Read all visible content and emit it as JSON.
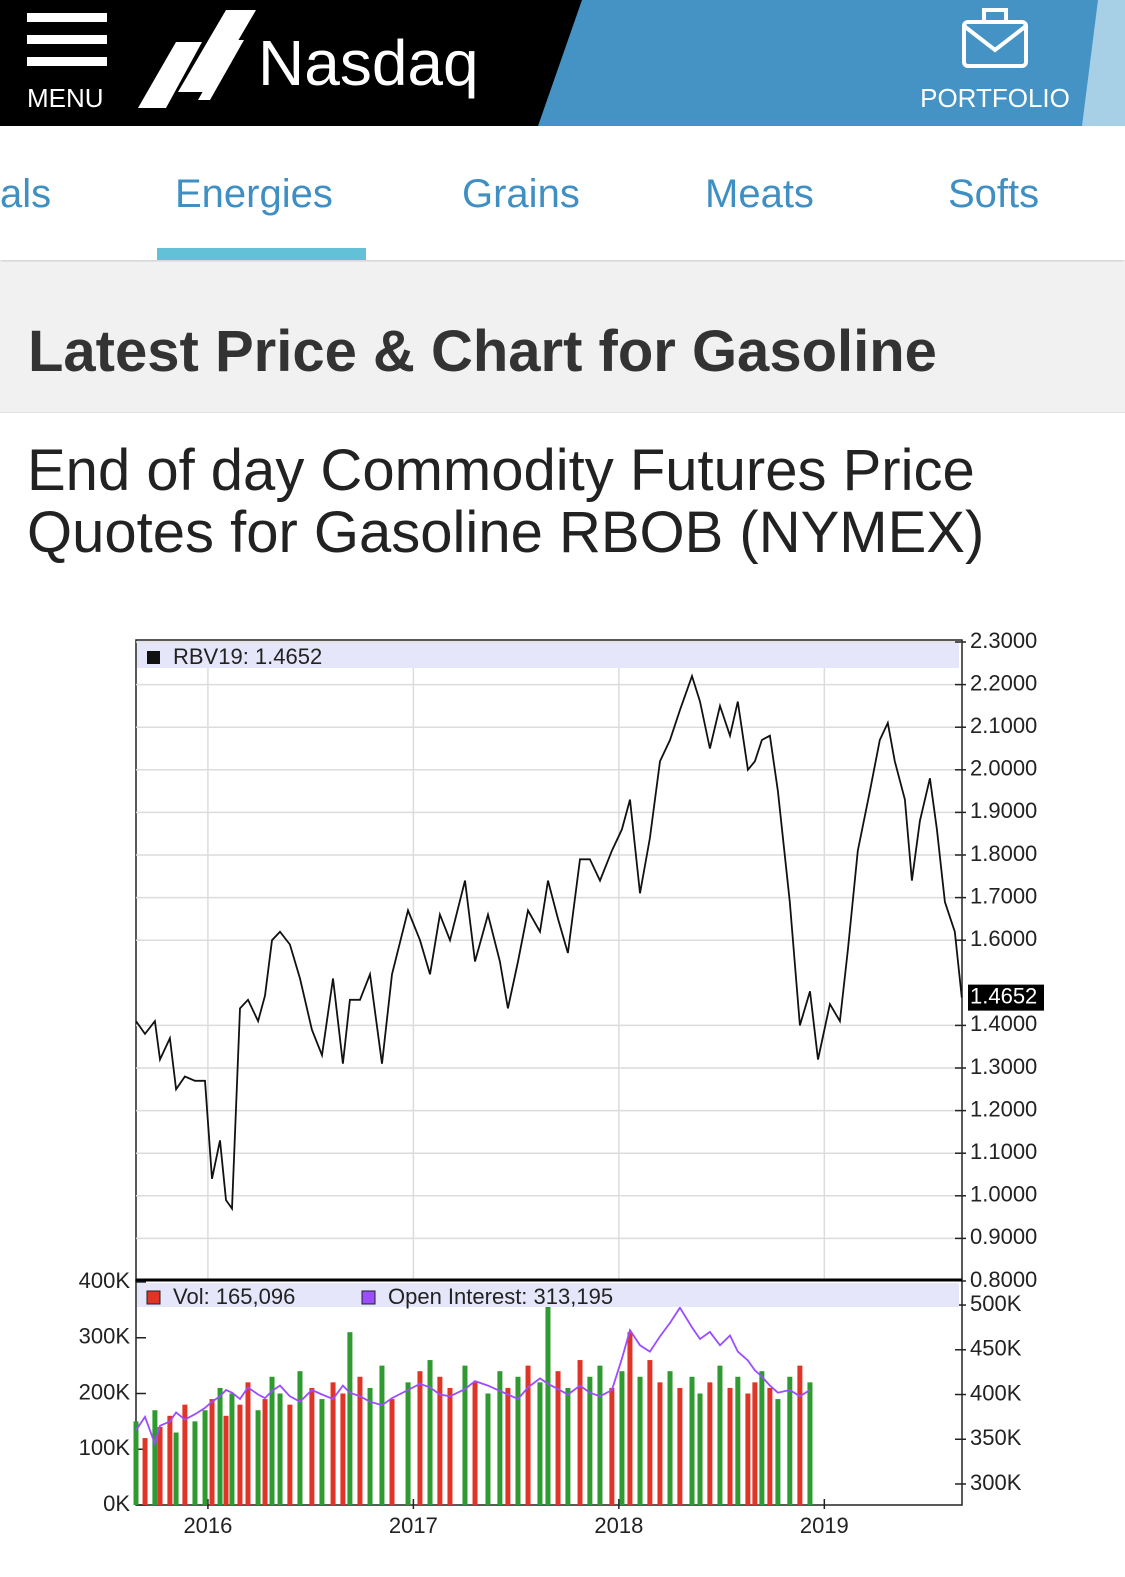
{
  "header": {
    "menu": "MENU",
    "logo": "Nasdaq",
    "portfolio": "PORTFOLIO"
  },
  "tabs": {
    "items": [
      "als",
      "Energies",
      "Grains",
      "Meats",
      "Softs"
    ],
    "active": 1
  },
  "section_title": "Latest Price & Chart for Gasoline",
  "heading": "End of day Commodity Futures Price Quotes for Gasoline RBOB (NYMEX)",
  "chart_data": [
    {
      "type": "line",
      "x": [
        2015.65,
        2015.694,
        2015.742,
        2015.767,
        2015.815,
        2015.845,
        2015.888,
        2015.937,
        2015.986,
        2016.02,
        2016.059,
        2016.088,
        2016.117,
        2016.156,
        2016.195,
        2016.244,
        2016.278,
        2016.312,
        2016.351,
        2016.399,
        2016.448,
        2016.506,
        2016.555,
        2016.609,
        2016.657,
        2016.691,
        2016.74,
        2016.789,
        2016.847,
        2016.896,
        2016.974,
        2017.032,
        2017.081,
        2017.129,
        2017.178,
        2017.251,
        2017.3,
        2017.363,
        2017.421,
        2017.46,
        2017.509,
        2017.558,
        2017.616,
        2017.655,
        2017.704,
        2017.752,
        2017.811,
        2017.859,
        2017.908,
        2017.966,
        2018.015,
        2018.054,
        2018.103,
        2018.151,
        2018.2,
        2018.249,
        2018.297,
        2018.356,
        2018.395,
        2018.443,
        2018.492,
        2018.541,
        2018.579,
        2018.628,
        2018.662,
        2018.696,
        2018.735,
        2018.774,
        2018.832,
        2018.881,
        2018.93,
        2018.969,
        2019.027,
        2019.076,
        2019.115,
        2019.163,
        2019.222,
        2019.27,
        2019.309,
        2019.343,
        2019.392,
        2019.426,
        2019.465,
        2019.514,
        2019.548,
        2019.587,
        2019.635,
        2019.669
      ],
      "series": [
        {
          "name": "RBV19: 1.4652",
          "color": "#111111",
          "values": [
            1.41,
            1.38,
            1.41,
            1.32,
            1.37,
            1.25,
            1.28,
            1.27,
            1.27,
            1.04,
            1.13,
            0.99,
            0.97,
            1.44,
            1.46,
            1.41,
            1.47,
            1.6,
            1.62,
            1.59,
            1.51,
            1.39,
            1.33,
            1.51,
            1.31,
            1.46,
            1.46,
            1.52,
            1.31,
            1.52,
            1.67,
            1.6,
            1.52,
            1.66,
            1.6,
            1.74,
            1.55,
            1.66,
            1.55,
            1.44,
            1.55,
            1.67,
            1.62,
            1.74,
            1.65,
            1.57,
            1.79,
            1.79,
            1.74,
            1.81,
            1.86,
            1.93,
            1.71,
            1.84,
            2.02,
            2.07,
            2.14,
            2.22,
            2.16,
            2.05,
            2.15,
            2.08,
            2.16,
            2.0,
            2.02,
            2.07,
            2.08,
            1.95,
            1.69,
            1.4,
            1.48,
            1.32,
            1.45,
            1.41,
            1.58,
            1.81,
            1.95,
            2.07,
            2.11,
            2.02,
            1.93,
            1.74,
            1.88,
            1.98,
            1.86,
            1.69,
            1.62,
            1.4652
          ]
        }
      ],
      "xlim": [
        2015.65,
        2019.67
      ],
      "xticks": [
        2016,
        2017,
        2018,
        2019
      ],
      "ylim": [
        0.8,
        2.3
      ],
      "yticks": [
        {
          "value": 0.8,
          "label": "0.8000"
        },
        {
          "value": 0.9,
          "label": "0.9000"
        },
        {
          "value": 1.0,
          "label": "1.0000"
        },
        {
          "value": 1.1,
          "label": "1.1000"
        },
        {
          "value": 1.2,
          "label": "1.2000"
        },
        {
          "value": 1.3,
          "label": "1.3000"
        },
        {
          "value": 1.4,
          "label": "1.4000"
        },
        {
          "value": 1.6,
          "label": "1.6000"
        },
        {
          "value": 1.7,
          "label": "1.7000"
        },
        {
          "value": 1.8,
          "label": "1.8000"
        },
        {
          "value": 1.9,
          "label": "1.9000"
        },
        {
          "value": 2.0,
          "label": "2.0000"
        },
        {
          "value": 2.1,
          "label": "2.1000"
        },
        {
          "value": 2.2,
          "label": "2.2000"
        },
        {
          "value": 2.3,
          "label": "2.3000"
        }
      ],
      "grid": true
    },
    {
      "type": "combo",
      "x": [
        2015.65,
        2015.694,
        2015.742,
        2015.767,
        2015.815,
        2015.845,
        2015.888,
        2015.937,
        2015.986,
        2016.02,
        2016.059,
        2016.088,
        2016.117,
        2016.156,
        2016.195,
        2016.244,
        2016.278,
        2016.312,
        2016.351,
        2016.399,
        2016.448,
        2016.506,
        2016.555,
        2016.609,
        2016.657,
        2016.691,
        2016.74,
        2016.789,
        2016.847,
        2016.896,
        2016.974,
        2017.032,
        2017.081,
        2017.129,
        2017.178,
        2017.251,
        2017.3,
        2017.363,
        2017.421,
        2017.46,
        2017.509,
        2017.558,
        2017.616,
        2017.655,
        2017.704,
        2017.752,
        2017.811,
        2017.859,
        2017.908,
        2017.966,
        2018.015,
        2018.054,
        2018.103,
        2018.151,
        2018.2,
        2018.249,
        2018.297,
        2018.356,
        2018.395,
        2018.443,
        2018.492,
        2018.541,
        2018.579,
        2018.628,
        2018.662,
        2018.696,
        2018.735,
        2018.774,
        2018.832,
        2018.881,
        2018.93
      ],
      "series": [
        {
          "name": "Vol: 165,096",
          "type": "bar",
          "color": "#e03426",
          "colors": [
            "#2f9a2f",
            "#e03426",
            "#2f9a2f",
            "#e03426",
            "#e03426",
            "#2f9a2f",
            "#e03426",
            "#2f9a2f",
            "#2f9a2f",
            "#e03426",
            "#2f9a2f",
            "#e03426",
            "#2f9a2f",
            "#e03426",
            "#e03426",
            "#2f9a2f",
            "#e03426",
            "#2f9a2f",
            "#2f9a2f",
            "#e03426",
            "#2f9a2f",
            "#e03426",
            "#2f9a2f",
            "#e03426",
            "#e03426",
            "#2f9a2f",
            "#e03426",
            "#2f9a2f",
            "#2f9a2f",
            "#e03426",
            "#2f9a2f",
            "#e03426",
            "#2f9a2f",
            "#e03426",
            "#e03426",
            "#2f9a2f",
            "#e03426",
            "#2f9a2f",
            "#2f9a2f",
            "#e03426",
            "#2f9a2f",
            "#e03426",
            "#2f9a2f",
            "#2f9a2f",
            "#e03426",
            "#2f9a2f",
            "#e03426",
            "#2f9a2f",
            "#2f9a2f",
            "#e03426",
            "#2f9a2f",
            "#e03426",
            "#2f9a2f",
            "#e03426",
            "#e03426",
            "#2f9a2f",
            "#e03426",
            "#2f9a2f",
            "#2f9a2f",
            "#e03426",
            "#2f9a2f",
            "#e03426",
            "#2f9a2f",
            "#e03426",
            "#e03426",
            "#2f9a2f",
            "#e03426",
            "#2f9a2f",
            "#2f9a2f",
            "#e03426",
            "#2f9a2f"
          ],
          "values": [
            150000,
            120000,
            170000,
            140000,
            160000,
            130000,
            180000,
            150000,
            170000,
            190000,
            210000,
            160000,
            200000,
            180000,
            220000,
            170000,
            190000,
            230000,
            200000,
            180000,
            240000,
            210000,
            190000,
            220000,
            200000,
            310000,
            230000,
            210000,
            250000,
            190000,
            220000,
            240000,
            260000,
            230000,
            210000,
            250000,
            220000,
            200000,
            240000,
            210000,
            230000,
            250000,
            220000,
            360000,
            240000,
            210000,
            260000,
            230000,
            250000,
            210000,
            240000,
            310000,
            230000,
            260000,
            220000,
            240000,
            210000,
            230000,
            200000,
            220000,
            250000,
            210000,
            230000,
            200000,
            220000,
            240000,
            210000,
            190000,
            230000,
            250000,
            220000
          ]
        },
        {
          "name": "Open Interest: 313,195",
          "type": "line",
          "axis": "y2",
          "color": "#9b4dff",
          "values": [
            360000,
            375000,
            345000,
            365000,
            370000,
            380000,
            372000,
            378000,
            385000,
            392000,
            398000,
            405000,
            402000,
            395000,
            408000,
            400000,
            396000,
            404000,
            410000,
            398000,
            392000,
            405000,
            400000,
            395000,
            410000,
            402000,
            398000,
            392000,
            388000,
            396000,
            405000,
            412000,
            408000,
            400000,
            398000,
            406000,
            415000,
            410000,
            404000,
            400000,
            395000,
            408000,
            418000,
            412000,
            406000,
            400000,
            410000,
            402000,
            398000,
            405000,
            440000,
            472000,
            455000,
            448000,
            465000,
            480000,
            497000,
            475000,
            462000,
            470000,
            455000,
            466000,
            448000,
            438000,
            427000,
            420000,
            410000,
            402000,
            405000,
            398000,
            405000
          ]
        }
      ],
      "xlim": [
        2015.65,
        2019.67
      ],
      "xticks": [
        2016,
        2017,
        2018,
        2019
      ],
      "ylim": [
        0,
        400000
      ],
      "yticks": [
        {
          "value": 0,
          "label": "0K"
        },
        {
          "value": 100000,
          "label": "100K"
        },
        {
          "value": 200000,
          "label": "200K"
        },
        {
          "value": 300000,
          "label": "300K"
        },
        {
          "value": 400000,
          "label": "400K"
        }
      ],
      "y2lim": [
        276500,
        528000
      ],
      "y2ticks": [
        {
          "value": 300000,
          "label": "300K"
        },
        {
          "value": 350000,
          "label": "350K"
        },
        {
          "value": 400000,
          "label": "400K"
        },
        {
          "value": 450000,
          "label": "450K"
        },
        {
          "value": 500000,
          "label": "500K"
        }
      ]
    }
  ]
}
